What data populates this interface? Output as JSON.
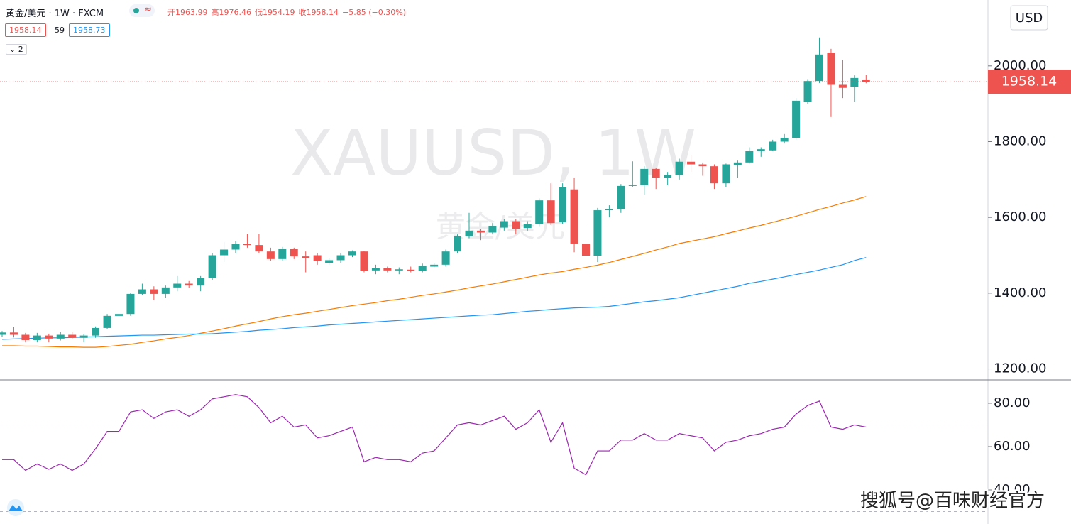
{
  "header": {
    "title": "黄金/美元 · 1W · FXCM",
    "ohlc": [
      "开1963.99",
      "高1976.46",
      "低1954.19",
      "收1958.14",
      "−5.85 (−0.30%)"
    ],
    "bid": "1958.14",
    "spread": "59",
    "ask": "1958.73",
    "collapse": "2"
  },
  "watermark": {
    "symbol": "XAUUSD, 1W",
    "name": "黄金/美元"
  },
  "currency": "USD",
  "footer": "搜狐号@百味财经官方",
  "chart_data": [
    {
      "type": "candlestick",
      "up_color": "#26a69a",
      "down_color": "#ef5350",
      "last_label": "1958.14",
      "open": [
        1290,
        1296,
        1290,
        1276,
        1288,
        1280,
        1290,
        1282,
        1288,
        1308,
        1340,
        1345,
        1398,
        1410,
        1398,
        1415,
        1425,
        1420,
        1440,
        1500,
        1515,
        1530,
        1527,
        1510,
        1490,
        1517,
        1497,
        1500,
        1480,
        1487,
        1500,
        1510,
        1460,
        1467,
        1460,
        1462,
        1458,
        1470,
        1475,
        1510,
        1550,
        1565,
        1560,
        1573,
        1590,
        1572,
        1583,
        1645,
        1587,
        1674,
        1531,
        1499,
        1619,
        1622,
        1683,
        1685,
        1728,
        1705,
        1712,
        1747,
        1740,
        1735,
        1690,
        1738,
        1745,
        1775,
        1777,
        1800,
        1810,
        1905,
        1960,
        2035,
        1950,
        1945,
        1963.99
      ],
      "high": [
        1300,
        1310,
        1295,
        1295,
        1293,
        1297,
        1297,
        1292,
        1312,
        1345,
        1352,
        1400,
        1425,
        1418,
        1420,
        1445,
        1432,
        1445,
        1505,
        1535,
        1537,
        1557,
        1557,
        1520,
        1522,
        1520,
        1510,
        1505,
        1492,
        1505,
        1513,
        1512,
        1475,
        1470,
        1468,
        1470,
        1478,
        1480,
        1515,
        1555,
        1612,
        1570,
        1585,
        1595,
        1595,
        1590,
        1650,
        1690,
        1690,
        1705,
        1580,
        1625,
        1632,
        1688,
        1748,
        1735,
        1730,
        1720,
        1755,
        1765,
        1745,
        1740,
        1742,
        1750,
        1785,
        1785,
        1805,
        1820,
        1915,
        1965,
        2075,
        2045,
        2015,
        1975,
        1976.46
      ],
      "low": [
        1285,
        1283,
        1270,
        1270,
        1270,
        1275,
        1278,
        1270,
        1282,
        1305,
        1330,
        1340,
        1395,
        1382,
        1388,
        1405,
        1414,
        1405,
        1435,
        1482,
        1505,
        1520,
        1505,
        1485,
        1485,
        1490,
        1455,
        1475,
        1475,
        1480,
        1495,
        1455,
        1450,
        1455,
        1450,
        1455,
        1455,
        1468,
        1470,
        1505,
        1545,
        1540,
        1555,
        1565,
        1555,
        1565,
        1575,
        1580,
        1582,
        1508,
        1450,
        1482,
        1600,
        1612,
        1680,
        1660,
        1675,
        1685,
        1700,
        1720,
        1710,
        1675,
        1680,
        1705,
        1742,
        1760,
        1775,
        1795,
        1805,
        1900,
        1955,
        1865,
        1915,
        1905,
        1954.19
      ],
      "close": [
        1296,
        1290,
        1276,
        1288,
        1280,
        1290,
        1282,
        1288,
        1308,
        1340,
        1345,
        1398,
        1410,
        1398,
        1415,
        1425,
        1420,
        1440,
        1500,
        1515,
        1530,
        1527,
        1510,
        1490,
        1517,
        1497,
        1492,
        1485,
        1487,
        1500,
        1510,
        1458,
        1467,
        1460,
        1463,
        1458,
        1472,
        1475,
        1510,
        1550,
        1565,
        1560,
        1577,
        1590,
        1570,
        1583,
        1645,
        1585,
        1680,
        1531,
        1499,
        1619,
        1622,
        1683,
        1685,
        1728,
        1705,
        1712,
        1747,
        1740,
        1735,
        1690,
        1740,
        1745,
        1775,
        1780,
        1800,
        1810,
        1908,
        1960,
        2030,
        1950,
        1942,
        1968,
        1958.14
      ],
      "overlays": [
        {
          "color": "#f57c00",
          "values": [
            1261,
            1261,
            1260,
            1260,
            1259,
            1258,
            1258,
            1257,
            1257,
            1259,
            1262,
            1265,
            1270,
            1274,
            1279,
            1283,
            1288,
            1294,
            1300,
            1306,
            1313,
            1319,
            1325,
            1332,
            1338,
            1343,
            1347,
            1352,
            1357,
            1362,
            1367,
            1371,
            1375,
            1380,
            1384,
            1389,
            1394,
            1398,
            1403,
            1408,
            1414,
            1419,
            1424,
            1430,
            1436,
            1442,
            1448,
            1453,
            1457,
            1463,
            1468,
            1474,
            1481,
            1489,
            1497,
            1505,
            1514,
            1522,
            1531,
            1537,
            1543,
            1549,
            1557,
            1564,
            1572,
            1579,
            1587,
            1595,
            1603,
            1612,
            1621,
            1629,
            1638,
            1646,
            1655
          ]
        },
        {
          "color": "#2196f3",
          "values": [
            1278,
            1279,
            1280,
            1281,
            1282,
            1282,
            1283,
            1284,
            1285,
            1286,
            1287,
            1288,
            1289,
            1289,
            1290,
            1291,
            1292,
            1292,
            1293,
            1295,
            1297,
            1299,
            1302,
            1304,
            1306,
            1309,
            1311,
            1313,
            1316,
            1318,
            1320,
            1322,
            1324,
            1326,
            1328,
            1330,
            1332,
            1334,
            1336,
            1338,
            1340,
            1342,
            1343,
            1346,
            1349,
            1352,
            1354,
            1357,
            1359,
            1361,
            1362,
            1363,
            1365,
            1369,
            1373,
            1377,
            1380,
            1384,
            1388,
            1394,
            1400,
            1406,
            1412,
            1418,
            1426,
            1431,
            1437,
            1443,
            1449,
            1455,
            1461,
            1468,
            1475,
            1486,
            1494
          ]
        }
      ],
      "ylim": [
        1171,
        2174
      ],
      "yticks": [
        {
          "value": 1200,
          "label": "1200.00"
        },
        {
          "value": 1400,
          "label": "1400.00"
        },
        {
          "value": 1600,
          "label": "1600.00"
        },
        {
          "value": 1800,
          "label": "1800.00"
        },
        {
          "value": 2000,
          "label": "2000.00"
        }
      ]
    },
    {
      "type": "line",
      "color": "#9c27b0",
      "values": [
        54,
        54,
        49,
        52,
        49.5,
        52,
        49,
        52,
        59,
        67,
        67,
        76,
        77,
        73,
        76,
        77,
        74,
        77,
        82,
        83,
        84,
        83,
        78,
        71,
        74,
        69,
        70,
        64,
        65,
        67,
        69,
        53,
        55,
        54,
        54,
        53,
        57,
        58,
        64,
        70,
        71,
        70,
        72,
        74,
        68,
        71,
        77,
        62,
        71,
        50,
        47,
        58,
        58,
        63,
        63,
        66,
        63,
        63,
        66,
        65,
        64,
        58,
        62,
        63,
        65,
        66,
        68,
        69,
        75,
        79,
        81,
        69,
        68,
        70,
        69
      ],
      "bands": [
        30,
        70
      ],
      "ylim": [
        24.6,
        90.8
      ],
      "yticks": [
        {
          "value": 40,
          "label": "40.00"
        },
        {
          "value": 60,
          "label": "60.00"
        },
        {
          "value": 80,
          "label": "80.00"
        }
      ]
    }
  ]
}
